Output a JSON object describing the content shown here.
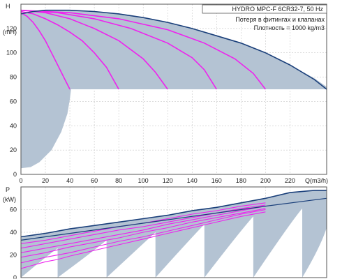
{
  "info": {
    "title": "HYDRO MPC-F 6CR32-7, 50 Hz",
    "line1": "Потеря в фитингах и клапанах",
    "line2": "Плотность = 1000 kg/m3"
  },
  "chart_data": [
    {
      "type": "line",
      "name": "head",
      "ylabel": "H",
      "yunit": "(mH)",
      "xlim": [
        0,
        250
      ],
      "ylim": [
        0,
        140
      ],
      "xticks": [
        0,
        20,
        40,
        60,
        80,
        100,
        120,
        140,
        160,
        180,
        200,
        220
      ],
      "yticks": [
        0,
        20,
        40,
        60,
        80,
        100,
        120
      ],
      "xlabel": "Q(m3/h)",
      "grid": true,
      "colors": {
        "curve": "#ee22ee",
        "envelope": "#1a3f7a",
        "area": "#b4c3d3"
      },
      "npsh_area": {
        "upper": [
          [
            0,
            132
          ],
          [
            10,
            134
          ],
          [
            20,
            135
          ],
          [
            40,
            135
          ],
          [
            60,
            134
          ],
          [
            80,
            132
          ],
          [
            100,
            129
          ],
          [
            120,
            125
          ],
          [
            140,
            120
          ],
          [
            160,
            114
          ],
          [
            180,
            108
          ],
          [
            200,
            100
          ],
          [
            220,
            90
          ],
          [
            240,
            79
          ],
          [
            250,
            72
          ]
        ],
        "lower": [
          [
            0,
            5
          ],
          [
            8,
            6
          ],
          [
            15,
            10
          ],
          [
            25,
            20
          ],
          [
            33,
            35
          ],
          [
            38,
            50
          ],
          [
            40,
            62
          ],
          [
            41,
            70
          ],
          [
            250,
            70
          ]
        ]
      },
      "envelope": [
        [
          0,
          132
        ],
        [
          10,
          134
        ],
        [
          20,
          135
        ],
        [
          40,
          135
        ],
        [
          60,
          134
        ],
        [
          80,
          132
        ],
        [
          100,
          129
        ],
        [
          120,
          125
        ],
        [
          140,
          120
        ],
        [
          160,
          114
        ],
        [
          180,
          108
        ],
        [
          200,
          100
        ],
        [
          220,
          90
        ],
        [
          240,
          78
        ],
        [
          250,
          70
        ]
      ],
      "series": [
        {
          "values": [
            [
              0,
              133
            ],
            [
              5,
              130
            ],
            [
              10,
              125
            ],
            [
              15,
              118
            ],
            [
              20,
              110
            ],
            [
              25,
              100
            ],
            [
              30,
              90
            ],
            [
              35,
              80
            ],
            [
              40,
              70
            ]
          ]
        },
        {
          "values": [
            [
              0,
              134
            ],
            [
              10,
              132
            ],
            [
              20,
              128
            ],
            [
              30,
              123
            ],
            [
              40,
              117
            ],
            [
              50,
              110
            ],
            [
              60,
              100
            ],
            [
              70,
              88
            ],
            [
              80,
              70
            ]
          ]
        },
        {
          "values": [
            [
              0,
              135
            ],
            [
              20,
              133
            ],
            [
              40,
              128
            ],
            [
              60,
              120
            ],
            [
              80,
              110
            ],
            [
              100,
              95
            ],
            [
              110,
              84
            ],
            [
              120,
              70
            ]
          ]
        },
        {
          "values": [
            [
              0,
              135
            ],
            [
              30,
              133
            ],
            [
              60,
              128
            ],
            [
              90,
              120
            ],
            [
              120,
              108
            ],
            [
              140,
              96
            ],
            [
              150,
              86
            ],
            [
              160,
              70
            ]
          ]
        },
        {
          "values": [
            [
              0,
              135
            ],
            [
              40,
              133
            ],
            [
              80,
              128
            ],
            [
              120,
              119
            ],
            [
              150,
              108
            ],
            [
              175,
              95
            ],
            [
              190,
              83
            ],
            [
              200,
              70
            ]
          ]
        }
      ]
    },
    {
      "type": "line",
      "name": "power",
      "ylabel": "P",
      "yunit": "(kW)",
      "xlim": [
        0,
        250
      ],
      "ylim": [
        0,
        80
      ],
      "yticks": [
        0,
        20,
        40,
        60
      ],
      "grid": true,
      "colors": {
        "curve": "#ee22ee",
        "envelope": "#1a3f7a",
        "area": "#b4c3d3"
      },
      "area": [
        [
          0,
          36
        ],
        [
          40,
          43
        ],
        [
          80,
          49
        ],
        [
          120,
          55
        ],
        [
          160,
          62
        ],
        [
          200,
          70
        ],
        [
          250,
          77
        ]
      ],
      "envelope_upper": [
        [
          0,
          36
        ],
        [
          20,
          39
        ],
        [
          40,
          43
        ],
        [
          60,
          46
        ],
        [
          80,
          49
        ],
        [
          100,
          52
        ],
        [
          120,
          55
        ],
        [
          140,
          59
        ],
        [
          160,
          62
        ],
        [
          180,
          66
        ],
        [
          200,
          70
        ],
        [
          220,
          75
        ],
        [
          240,
          77
        ],
        [
          250,
          77
        ]
      ],
      "envelope_lower": [
        [
          0,
          33
        ],
        [
          40,
          39
        ],
        [
          80,
          45
        ],
        [
          120,
          51
        ],
        [
          160,
          57
        ],
        [
          200,
          63
        ],
        [
          250,
          70
        ]
      ],
      "series": [
        {
          "values": [
            [
              0,
              8
            ],
            [
              10,
              11
            ],
            [
              20,
              14
            ],
            [
              30,
              16
            ],
            [
              40,
              19
            ],
            [
              60,
              24
            ],
            [
              80,
              29
            ],
            [
              100,
              34
            ],
            [
              120,
              39
            ],
            [
              140,
              44
            ],
            [
              160,
              49
            ],
            [
              180,
              54
            ],
            [
              200,
              58
            ]
          ]
        },
        {
          "values": [
            [
              0,
              13
            ],
            [
              20,
              18
            ],
            [
              40,
              22
            ],
            [
              60,
              27
            ],
            [
              80,
              32
            ],
            [
              100,
              36
            ],
            [
              120,
              41
            ],
            [
              140,
              46
            ],
            [
              160,
              51
            ],
            [
              180,
              56
            ],
            [
              200,
              60
            ]
          ]
        },
        {
          "values": [
            [
              0,
              18
            ],
            [
              20,
              22
            ],
            [
              40,
              27
            ],
            [
              60,
              31
            ],
            [
              80,
              35
            ],
            [
              100,
              40
            ],
            [
              120,
              44
            ],
            [
              140,
              49
            ],
            [
              160,
              53
            ],
            [
              180,
              57
            ],
            [
              200,
              61
            ]
          ]
        },
        {
          "values": [
            [
              0,
              22
            ],
            [
              20,
              26
            ],
            [
              40,
              30
            ],
            [
              60,
              34
            ],
            [
              80,
              38
            ],
            [
              100,
              42
            ],
            [
              120,
              47
            ],
            [
              140,
              51
            ],
            [
              160,
              55
            ],
            [
              180,
              59
            ],
            [
              200,
              63
            ]
          ]
        },
        {
          "values": [
            [
              0,
              26
            ],
            [
              20,
              30
            ],
            [
              40,
              34
            ],
            [
              60,
              38
            ],
            [
              80,
              42
            ],
            [
              100,
              45
            ],
            [
              120,
              49
            ],
            [
              140,
              53
            ],
            [
              160,
              57
            ],
            [
              180,
              61
            ],
            [
              200,
              64
            ]
          ]
        },
        {
          "values": [
            [
              0,
              30
            ],
            [
              20,
              33
            ],
            [
              40,
              37
            ],
            [
              60,
              41
            ],
            [
              80,
              45
            ],
            [
              100,
              48
            ],
            [
              120,
              52
            ],
            [
              140,
              56
            ],
            [
              160,
              59
            ],
            [
              180,
              63
            ],
            [
              200,
              66
            ]
          ]
        }
      ]
    }
  ]
}
